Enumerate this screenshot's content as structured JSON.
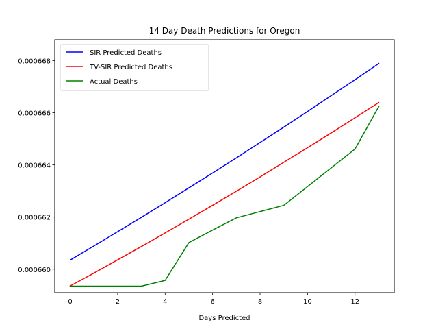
{
  "chart_data": {
    "type": "line",
    "title": "14 Day Death Predictions for Oregon",
    "xlabel": "Days Predicted",
    "ylabel": "",
    "xlim": [
      -0.65,
      13.65
    ],
    "ylim": [
      0.0006591,
      0.0006688
    ],
    "xticks": [
      0,
      2,
      4,
      6,
      8,
      10,
      12
    ],
    "yticks": [
      0.00066,
      0.000662,
      0.000664,
      0.000666,
      0.000668
    ],
    "ytick_labels": [
      "0.000660",
      "0.000662",
      "0.000664",
      "0.000666",
      "0.000668"
    ],
    "grid": false,
    "legend_position": "top-left",
    "x": [
      0,
      1,
      2,
      3,
      4,
      5,
      6,
      7,
      8,
      9,
      10,
      11,
      12,
      13
    ],
    "series": [
      {
        "name": "SIR Predicted Deaths",
        "color": "#0000ff",
        "values": [
          0.00066035,
          0.00066089,
          0.00066144,
          0.00066199,
          0.00066255,
          0.00066312,
          0.00066369,
          0.00066427,
          0.00066486,
          0.00066545,
          0.00066605,
          0.00066666,
          0.00066727,
          0.00066789
        ]
      },
      {
        "name": "TV-SIR Predicted Deaths",
        "color": "#ff0000",
        "values": [
          0.00065936,
          0.00065985,
          0.00066036,
          0.00066087,
          0.00066139,
          0.00066192,
          0.00066245,
          0.00066299,
          0.00066354,
          0.0006641,
          0.00066466,
          0.00066523,
          0.00066581,
          0.00066639
        ]
      },
      {
        "name": "Actual Deaths",
        "color": "#008000",
        "values": [
          0.00065935,
          0.00065935,
          0.00065935,
          0.00065935,
          0.00065957,
          0.00066102,
          0.0006615,
          0.00066197,
          0.00066221,
          0.00066245,
          0.00066317,
          0.00066389,
          0.00066461,
          0.00066624
        ]
      }
    ]
  }
}
